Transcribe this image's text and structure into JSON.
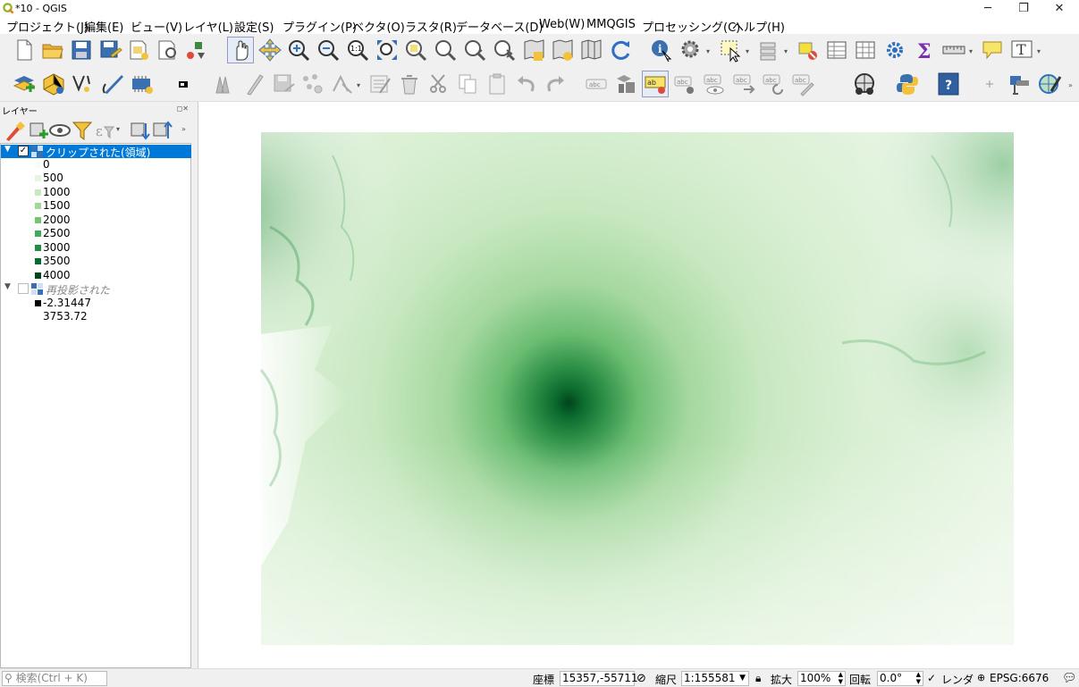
{
  "window": {
    "title": "*10 - QGIS",
    "buttons": {
      "minimize": "─",
      "restore": "❐",
      "close": "✕"
    }
  },
  "menu": [
    "プロジェクト(J)",
    "編集(E)",
    "ビュー(V)",
    "レイヤ(L)",
    "設定(S)",
    "プラグイン(P)",
    "ベクタ(O)",
    "ラスタ(R)",
    "データベース(D)",
    "Web(W)",
    "MMQGIS",
    "プロセッシング(C)",
    "ヘルプ(H)"
  ],
  "layers_panel": {
    "title": "レイヤー",
    "layers": [
      {
        "name": "クリップされた(領域)",
        "checked": true,
        "selected": true,
        "legend": [
          {
            "label": "0",
            "color": "#f7fcf5"
          },
          {
            "label": "500",
            "color": "#e5f5e0"
          },
          {
            "label": "1000",
            "color": "#c7e9c0"
          },
          {
            "label": "1500",
            "color": "#a1d99b"
          },
          {
            "label": "2000",
            "color": "#74c476"
          },
          {
            "label": "2500",
            "color": "#41ab5d"
          },
          {
            "label": "3000",
            "color": "#238b45"
          },
          {
            "label": "3500",
            "color": "#006d2c"
          },
          {
            "label": "4000",
            "color": "#00441b"
          }
        ]
      },
      {
        "name": "再投影された",
        "checked": false,
        "selected": false,
        "legend_min": "-2.31447",
        "legend_max": "3753.72"
      }
    ]
  },
  "status": {
    "search_placeholder": "検索(Ctrl + K)",
    "coord_label": "座標",
    "coord_value": "15357,-55711",
    "scale_label": "縮尺",
    "scale_value": "1:155581",
    "magnifier_label": "拡大",
    "magnifier_value": "100%",
    "rotation_label": "回転",
    "rotation_value": "0.0°",
    "render_label": "レンダ",
    "crs": "EPSG:6676"
  },
  "colors": {
    "selection": "#0078d7",
    "map_dark": "#00441b",
    "map_light": "#f7fcf5"
  }
}
